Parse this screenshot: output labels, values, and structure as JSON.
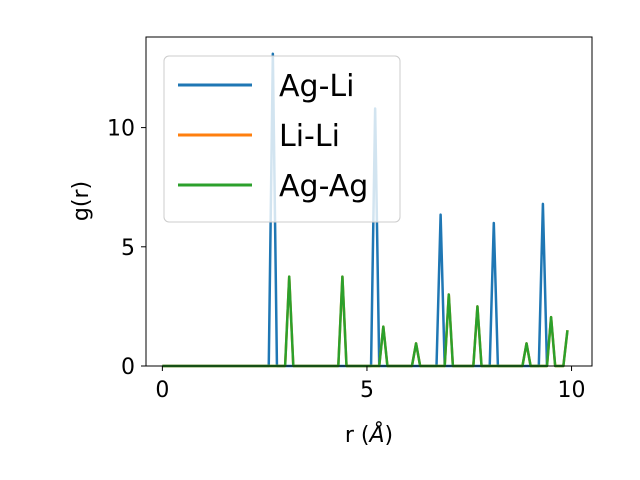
{
  "chart_data": {
    "type": "line",
    "xlabel": "r (",
    "xlabel_unit": "Å",
    "xlabel_close": ")",
    "ylabel": "g(r)",
    "xlim": [
      -0.4,
      10.5
    ],
    "ylim": [
      0,
      13.8
    ],
    "xticks": [
      0,
      5,
      10
    ],
    "xtick_labels": [
      "0",
      "5",
      "10"
    ],
    "yticks": [
      0,
      5,
      10
    ],
    "ytick_labels": [
      "0",
      "5",
      "10"
    ],
    "grid": false,
    "legend_placement": "upper-left",
    "series": [
      {
        "name": "Ag-Li",
        "color": "#1f77b4",
        "x": [
          0,
          2.6,
          2.7,
          2.8,
          5.1,
          5.2,
          5.3,
          6.7,
          6.8,
          6.9,
          8.0,
          8.1,
          8.2,
          9.2,
          9.3,
          9.4
        ],
        "y": [
          0,
          0,
          13.1,
          0,
          0,
          10.8,
          0,
          0,
          6.35,
          0,
          0,
          6.0,
          0,
          0,
          6.8,
          0
        ]
      },
      {
        "name": "Li-Li",
        "color": "#ff7f0e",
        "x": [
          0,
          3.0,
          3.1,
          3.2,
          4.3,
          4.4,
          4.5,
          5.3,
          5.4,
          5.5,
          6.1,
          6.2,
          6.3,
          6.9,
          7.0,
          7.1,
          7.6,
          7.7,
          7.8,
          8.8,
          8.9,
          9.0,
          9.4,
          9.5,
          9.6,
          9.8,
          9.9
        ],
        "y": [
          0,
          0,
          3.75,
          0,
          0,
          3.75,
          0,
          0,
          1.65,
          0,
          0,
          0.95,
          0,
          0,
          3.0,
          0,
          0,
          2.5,
          0,
          0,
          0.95,
          0,
          0,
          2.05,
          0,
          0,
          1.5
        ]
      },
      {
        "name": "Ag-Ag",
        "color": "#2ca02c",
        "x": [
          0,
          3.0,
          3.1,
          3.2,
          4.3,
          4.4,
          4.5,
          5.3,
          5.4,
          5.5,
          6.1,
          6.2,
          6.3,
          6.9,
          7.0,
          7.1,
          7.6,
          7.7,
          7.8,
          8.8,
          8.9,
          9.0,
          9.4,
          9.5,
          9.6,
          9.8,
          9.9
        ],
        "y": [
          0,
          0,
          3.75,
          0,
          0,
          3.75,
          0,
          0,
          1.65,
          0,
          0,
          0.95,
          0,
          0,
          3.0,
          0,
          0,
          2.5,
          0,
          0,
          0.95,
          0,
          0,
          2.05,
          0,
          0,
          1.5
        ]
      }
    ]
  }
}
